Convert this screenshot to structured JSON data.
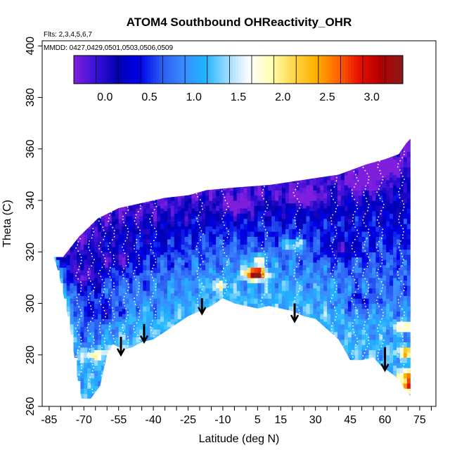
{
  "chart_data": {
    "type": "heatmap",
    "title": "ATOM4 Southbound OHReactivity_OHR",
    "flights_note": "Flts: 2,3,4,5,6,7",
    "dates_note": "MMDD: 0427,0429,0501,0503,0506,0509",
    "xlabel": "Latitude (deg N)",
    "ylabel": "Theta (C)",
    "xlim": [
      -88,
      82
    ],
    "ylim": [
      260,
      402
    ],
    "x_ticks": [
      -85,
      -70,
      -55,
      -40,
      -25,
      -10,
      5,
      15,
      30,
      45,
      60,
      75
    ],
    "x_tick_labels": [
      "-85",
      "-70",
      "-55",
      "-40",
      "-25",
      "-10",
      "5",
      "15",
      "30",
      "45",
      "60",
      "75"
    ],
    "y_ticks": [
      260,
      280,
      300,
      320,
      340,
      360,
      380,
      400
    ],
    "y_tick_labels": [
      "260",
      "280",
      "300",
      "320",
      "340",
      "360",
      "380",
      "400"
    ],
    "colorbar": {
      "range": [
        -0.35,
        3.35
      ],
      "ticks": [
        0.0,
        0.5,
        1.0,
        1.5,
        2.0,
        2.5,
        3.0
      ],
      "tick_labels": [
        "0.0",
        "0.5",
        "1.0",
        "1.5",
        "2.0",
        "2.5",
        "3.0"
      ],
      "colors": [
        "#7f1fdd",
        "#3a10d8",
        "#0000b0",
        "#0000e8",
        "#2a5cf0",
        "#3b8bff",
        "#1eb5ff",
        "#9edbff",
        "#ffffff",
        "#ffffb0",
        "#ffd84a",
        "#ffb000",
        "#ff6a00",
        "#e81000",
        "#b00000",
        "#8b1a1a"
      ]
    },
    "data_region": {
      "upper_boundary": [
        [
          -83,
          318
        ],
        [
          -79,
          318
        ],
        [
          -72,
          326
        ],
        [
          -64,
          333
        ],
        [
          -55,
          337
        ],
        [
          -45,
          339
        ],
        [
          -35,
          341
        ],
        [
          -25,
          342
        ],
        [
          -17,
          344
        ],
        [
          -5,
          345
        ],
        [
          10,
          346
        ],
        [
          25,
          348
        ],
        [
          40,
          350
        ],
        [
          52,
          354
        ],
        [
          60,
          356
        ],
        [
          66,
          358
        ],
        [
          69,
          362
        ],
        [
          71,
          364
        ]
      ],
      "lower_boundary": [
        [
          -83,
          318
        ],
        [
          -81,
          312
        ],
        [
          -78,
          300
        ],
        [
          -75,
          285
        ],
        [
          -73,
          272
        ],
        [
          -71,
          263
        ],
        [
          -67,
          263
        ],
        [
          -63,
          268
        ],
        [
          -60,
          280
        ],
        [
          -57,
          284
        ],
        [
          -53,
          282
        ],
        [
          -49,
          283
        ],
        [
          -45,
          285
        ],
        [
          -40,
          286
        ],
        [
          -35,
          289
        ],
        [
          -30,
          292
        ],
        [
          -25,
          295
        ],
        [
          -20,
          297
        ],
        [
          -15,
          299
        ],
        [
          -10,
          302
        ],
        [
          -5,
          300
        ],
        [
          0,
          299
        ],
        [
          5,
          298
        ],
        [
          10,
          299
        ],
        [
          15,
          298
        ],
        [
          20,
          297
        ],
        [
          25,
          295
        ],
        [
          30,
          294
        ],
        [
          35,
          290
        ],
        [
          40,
          286
        ],
        [
          45,
          278
        ],
        [
          50,
          278
        ],
        [
          55,
          279
        ],
        [
          58,
          276
        ],
        [
          61,
          274
        ],
        [
          64,
          272
        ],
        [
          67,
          269
        ],
        [
          69,
          266
        ],
        [
          71,
          264
        ]
      ],
      "high_value_patches": [
        {
          "lat": 20,
          "theta": 322,
          "value": 2.0
        },
        {
          "lat": 5,
          "theta": 316,
          "value": 1.9
        },
        {
          "lat": 3,
          "theta": 311,
          "value": 2.7
        },
        {
          "lat": 4,
          "theta": 310,
          "value": 2.2
        },
        {
          "lat": -12,
          "theta": 306,
          "value": 1.6
        },
        {
          "lat": -57,
          "theta": 280,
          "value": 2.0
        },
        {
          "lat": -67,
          "theta": 279,
          "value": 1.9
        },
        {
          "lat": 68,
          "theta": 290,
          "value": 2.0
        },
        {
          "lat": 69,
          "theta": 280,
          "value": 2.2
        },
        {
          "lat": 70,
          "theta": 271,
          "value": 2.6
        },
        {
          "lat": 71,
          "theta": 267,
          "value": 3.1
        }
      ],
      "low_value_patches": [
        {
          "lat": -5,
          "theta": 337,
          "value": -0.2
        },
        {
          "lat": 25,
          "theta": 340,
          "value": -0.1
        },
        {
          "lat": 50,
          "theta": 346,
          "value": -0.2
        },
        {
          "lat": 58,
          "theta": 352,
          "value": -0.3
        },
        {
          "lat": 40,
          "theta": 320,
          "value": -0.1
        },
        {
          "lat": -55,
          "theta": 316,
          "value": -0.1
        },
        {
          "lat": -70,
          "theta": 310,
          "value": 0.0
        },
        {
          "lat": -60,
          "theta": 296,
          "value": 0.0
        },
        {
          "lat": 50,
          "theta": 300,
          "value": 0.1
        }
      ]
    },
    "arrows": [
      {
        "lat": -54,
        "theta_top": 287,
        "theta_tip": 280
      },
      {
        "lat": -44,
        "theta_top": 292,
        "theta_tip": 285
      },
      {
        "lat": -19,
        "theta_top": 302,
        "theta_tip": 296
      },
      {
        "lat": 21,
        "theta_top": 300,
        "theta_tip": 293
      },
      {
        "lat": 60,
        "theta_top": 283,
        "theta_tip": 274
      }
    ]
  }
}
